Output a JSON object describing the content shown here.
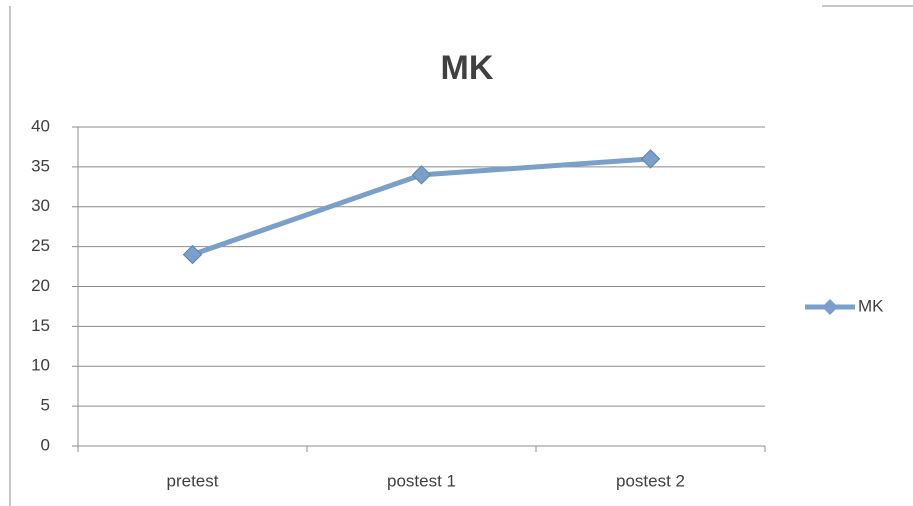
{
  "chart_data": {
    "type": "line",
    "title": "MK",
    "categories": [
      "pretest",
      "postest 1",
      "postest 2"
    ],
    "series": [
      {
        "name": "MK",
        "color": "#7a9fc8",
        "values": [
          24,
          34,
          36
        ]
      }
    ],
    "ylim": [
      0,
      40
    ],
    "yticks": [
      0,
      5,
      10,
      15,
      20,
      25,
      30,
      35,
      40
    ],
    "grid": true,
    "legend": "right"
  }
}
